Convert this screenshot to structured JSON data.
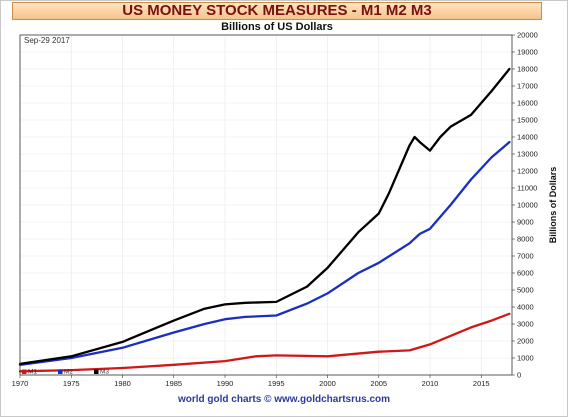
{
  "header": {
    "title": "US MONEY STOCK MEASURES - M1 M2 M3",
    "subtitle": "Billions of US Dollars"
  },
  "footer": {
    "credit": "world gold charts © www.goldchartsrus.com"
  },
  "chart_data": {
    "type": "line",
    "date_label": "Sep-29 2017",
    "ylabel": "Billions of Dollars",
    "ylim": [
      0,
      20000
    ],
    "xlim": [
      1970,
      2018
    ],
    "y_ticks": [
      0,
      1000,
      2000,
      3000,
      4000,
      5000,
      6000,
      7000,
      8000,
      9000,
      10000,
      11000,
      12000,
      13000,
      14000,
      15000,
      16000,
      17000,
      18000,
      19000,
      20000
    ],
    "x_ticks": [
      1970,
      1975,
      1980,
      1985,
      1990,
      1995,
      2000,
      2005,
      2010,
      2015
    ],
    "grid": true,
    "legend_position": "bottom-left",
    "series": [
      {
        "name": "M1",
        "color": "#d01818",
        "x": [
          1970,
          1975,
          1980,
          1985,
          1990,
          1993,
          1995,
          2000,
          2005,
          2008,
          2010,
          2012,
          2014,
          2016,
          2017.75
        ],
        "y": [
          215,
          290,
          410,
          600,
          820,
          1100,
          1150,
          1100,
          1370,
          1450,
          1800,
          2300,
          2800,
          3200,
          3600
        ]
      },
      {
        "name": "M2",
        "color": "#1a2fc0",
        "x": [
          1970,
          1975,
          1980,
          1985,
          1988,
          1990,
          1992,
          1995,
          1998,
          2000,
          2003,
          2005,
          2008,
          2009,
          2010,
          2012,
          2014,
          2016,
          2017.75
        ],
        "y": [
          600,
          1000,
          1600,
          2500,
          3000,
          3280,
          3420,
          3500,
          4200,
          4800,
          6000,
          6600,
          7750,
          8300,
          8600,
          10000,
          11500,
          12800,
          13700
        ]
      },
      {
        "name": "M3",
        "color": "#000000",
        "x": [
          1970,
          1975,
          1980,
          1983,
          1985,
          1988,
          1990,
          1992,
          1995,
          1998,
          2000,
          2003,
          2005,
          2006,
          2008,
          2008.5,
          2009,
          2010,
          2011,
          2012,
          2014,
          2016,
          2017.75
        ],
        "y": [
          650,
          1100,
          1950,
          2700,
          3200,
          3900,
          4150,
          4250,
          4300,
          5200,
          6300,
          8400,
          9500,
          10700,
          13500,
          14000,
          13700,
          13200,
          14000,
          14600,
          15300,
          16700,
          18000
        ]
      }
    ]
  }
}
